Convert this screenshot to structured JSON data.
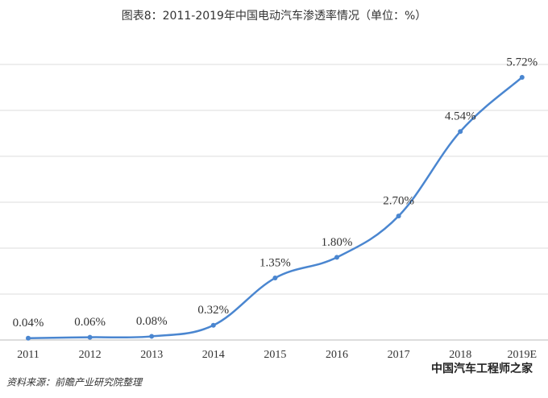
{
  "chart_data": {
    "type": "line",
    "title": "图表8：2011-2019年中国电动汽车渗透率情况（单位：%）",
    "categories": [
      "2011",
      "2012",
      "2013",
      "2014",
      "2015",
      "2016",
      "2017",
      "2018",
      "2019E"
    ],
    "values": [
      0.04,
      0.06,
      0.08,
      0.32,
      1.35,
      1.8,
      2.7,
      4.54,
      5.72
    ],
    "value_labels": [
      "0.04%",
      "0.06%",
      "0.08%",
      "0.32%",
      "1.35%",
      "1.80%",
      "2.70%",
      "4.54%",
      "5.72%"
    ],
    "color": "#4a86d0",
    "ylim": [
      0,
      6
    ],
    "yticks": [
      0,
      1,
      2,
      3,
      4,
      5,
      6
    ],
    "grid": true,
    "source": "资料来源：前瞻产业研究院整理",
    "watermark": "中国汽车工程师之家"
  }
}
